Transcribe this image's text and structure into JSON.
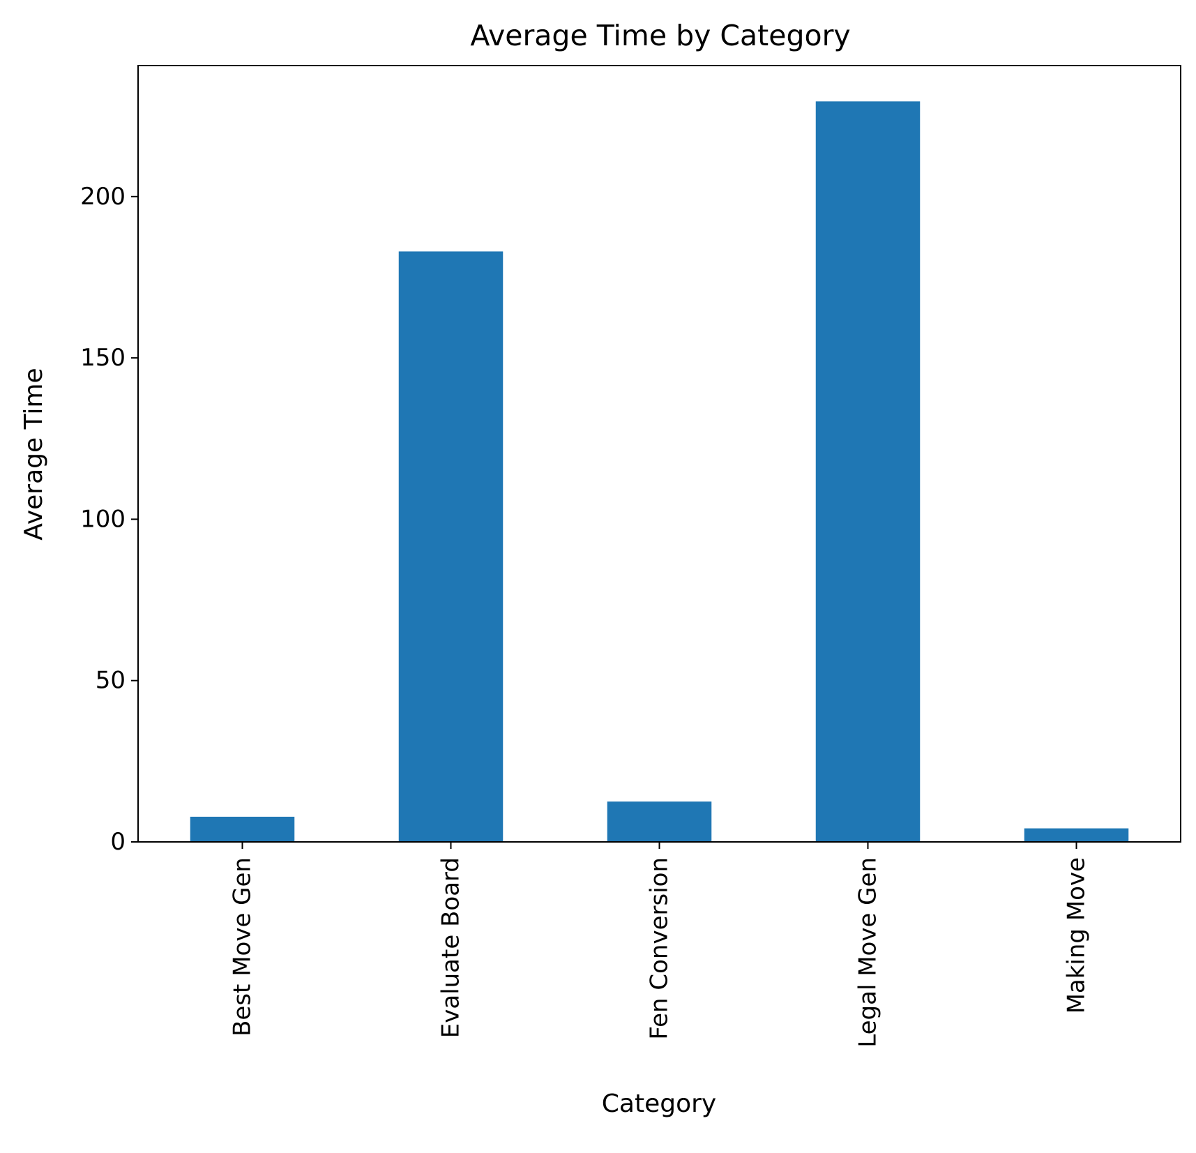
{
  "chart_data": {
    "type": "bar",
    "title": "Average Time by Category",
    "xlabel": "Category",
    "ylabel": "Average Time",
    "categories": [
      "Best Move Gen",
      "Evaluate Board",
      "Fen Conversion",
      "Legal Move Gen",
      "Making Move"
    ],
    "values": [
      7.8,
      183,
      12.5,
      229.5,
      4.2
    ],
    "ylim": [
      0,
      240.6
    ],
    "yticks": [
      0,
      50,
      100,
      150,
      200
    ],
    "grid": false,
    "bar_color": "#1f77b4"
  }
}
